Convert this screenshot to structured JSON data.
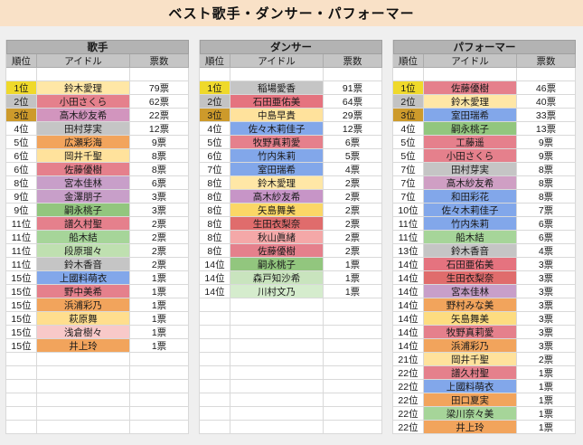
{
  "title": "ベスト歌手・ダンサー・パフォーマー",
  "column_headers": {
    "rank": "順位",
    "idol": "アイドル",
    "votes": "票数"
  },
  "medal_colors": {
    "gold": "#EFD92B",
    "silver": "#C3C3C3",
    "bronze": "#CD9A2B"
  },
  "layout": {
    "body_rows": 26
  },
  "sections": [
    {
      "name": "歌手",
      "rows": [
        {
          "rank": "1位",
          "idol": "鈴木愛理",
          "votes": "79票",
          "color": "#FFE7A6",
          "rank_color": "#EFD92B"
        },
        {
          "rank": "2位",
          "idol": "小田さくら",
          "votes": "62票",
          "color": "#E5808C",
          "rank_color": "#C3C3C3"
        },
        {
          "rank": "3位",
          "idol": "高木紗友希",
          "votes": "22票",
          "color": "#D295BE",
          "rank_color": "#CD9A2B"
        },
        {
          "rank": "4位",
          "idol": "田村芽実",
          "votes": "12票",
          "color": "#C5C5C5"
        },
        {
          "rank": "5位",
          "idol": "広瀬彩海",
          "votes": "9票",
          "color": "#F2A45C"
        },
        {
          "rank": "6位",
          "idol": "岡井千聖",
          "votes": "8票",
          "color": "#FFE29C"
        },
        {
          "rank": "6位",
          "idol": "佐藤優樹",
          "votes": "8票",
          "color": "#E5808C"
        },
        {
          "rank": "8位",
          "idol": "宮本佳林",
          "votes": "6票",
          "color": "#C89FC9"
        },
        {
          "rank": "9位",
          "idol": "金澤朋子",
          "votes": "3票",
          "color": "#C89FC9"
        },
        {
          "rank": "9位",
          "idol": "嗣永桃子",
          "votes": "3票",
          "color": "#92C67E"
        },
        {
          "rank": "11位",
          "idol": "譜久村聖",
          "votes": "2票",
          "color": "#E5808C"
        },
        {
          "rank": "11位",
          "idol": "船木結",
          "votes": "2票",
          "color": "#A6D599"
        },
        {
          "rank": "11位",
          "idol": "段原瑠々",
          "votes": "2票",
          "color": "#BFE0B0"
        },
        {
          "rank": "11位",
          "idol": "鈴木香音",
          "votes": "2票",
          "color": "#C5C5C5"
        },
        {
          "rank": "15位",
          "idol": "上國料萌衣",
          "votes": "1票",
          "color": "#82A7EA"
        },
        {
          "rank": "15位",
          "idol": "野中美希",
          "votes": "1票",
          "color": "#E5808C"
        },
        {
          "rank": "15位",
          "idol": "浜浦彩乃",
          "votes": "1票",
          "color": "#F2A45C"
        },
        {
          "rank": "15位",
          "idol": "萩原舞",
          "votes": "1票",
          "color": "#FFDE8E"
        },
        {
          "rank": "15位",
          "idol": "浅倉樹々",
          "votes": "1票",
          "color": "#F8C9C9"
        },
        {
          "rank": "15位",
          "idol": "井上玲",
          "votes": "1票",
          "color": "#F2A45C"
        }
      ]
    },
    {
      "name": "ダンサー",
      "rows": [
        {
          "rank": "1位",
          "idol": "稲場愛香",
          "votes": "91票",
          "color": "#C5C5C5",
          "rank_color": "#EFD92B"
        },
        {
          "rank": "2位",
          "idol": "石田亜佑美",
          "votes": "64票",
          "color": "#E5737F",
          "rank_color": "#C3C3C3"
        },
        {
          "rank": "3位",
          "idol": "中島早貴",
          "votes": "29票",
          "color": "#FFE29C",
          "rank_color": "#CD9A2B"
        },
        {
          "rank": "4位",
          "idol": "佐々木莉佳子",
          "votes": "12票",
          "color": "#82A7EA"
        },
        {
          "rank": "5位",
          "idol": "牧野真莉愛",
          "votes": "6票",
          "color": "#E5808C"
        },
        {
          "rank": "6位",
          "idol": "竹内朱莉",
          "votes": "5票",
          "color": "#82A7EA"
        },
        {
          "rank": "7位",
          "idol": "室田瑞希",
          "votes": "4票",
          "color": "#82A7EA"
        },
        {
          "rank": "8位",
          "idol": "鈴木愛理",
          "votes": "2票",
          "color": "#FFE7A6"
        },
        {
          "rank": "8位",
          "idol": "高木紗友希",
          "votes": "2票",
          "color": "#C795C7"
        },
        {
          "rank": "8位",
          "idol": "矢島舞美",
          "votes": "2票",
          "color": "#FBD766"
        },
        {
          "rank": "8位",
          "idol": "生田衣梨奈",
          "votes": "2票",
          "color": "#E06C6C"
        },
        {
          "rank": "8位",
          "idol": "秋山眞緒",
          "votes": "2票",
          "color": "#F4A8A8"
        },
        {
          "rank": "8位",
          "idol": "佐藤優樹",
          "votes": "2票",
          "color": "#E5808C"
        },
        {
          "rank": "14位",
          "idol": "嗣永桃子",
          "votes": "1票",
          "color": "#92C67E"
        },
        {
          "rank": "14位",
          "idol": "森戸知沙希",
          "votes": "1票",
          "color": "#C9E4BE"
        },
        {
          "rank": "14位",
          "idol": "川村文乃",
          "votes": "1票",
          "color": "#D5ECCD"
        }
      ]
    },
    {
      "name": "パフォーマー",
      "rows": [
        {
          "rank": "1位",
          "idol": "佐藤優樹",
          "votes": "46票",
          "color": "#E5808C",
          "rank_color": "#EFD92B"
        },
        {
          "rank": "2位",
          "idol": "鈴木愛理",
          "votes": "40票",
          "color": "#FFE7A6",
          "rank_color": "#C3C3C3"
        },
        {
          "rank": "3位",
          "idol": "室田瑞希",
          "votes": "33票",
          "color": "#82A7EA",
          "rank_color": "#CD9A2B"
        },
        {
          "rank": "4位",
          "idol": "嗣永桃子",
          "votes": "13票",
          "color": "#92C67E"
        },
        {
          "rank": "5位",
          "idol": "工藤遥",
          "votes": "9票",
          "color": "#E5808C"
        },
        {
          "rank": "5位",
          "idol": "小田さくら",
          "votes": "9票",
          "color": "#E5808C"
        },
        {
          "rank": "7位",
          "idol": "田村芽実",
          "votes": "8票",
          "color": "#C5C5C5"
        },
        {
          "rank": "7位",
          "idol": "高木紗友希",
          "votes": "8票",
          "color": "#CF9FC4"
        },
        {
          "rank": "7位",
          "idol": "和田彩花",
          "votes": "8票",
          "color": "#82A7EA"
        },
        {
          "rank": "10位",
          "idol": "佐々木莉佳子",
          "votes": "7票",
          "color": "#82A7EA"
        },
        {
          "rank": "11位",
          "idol": "竹内朱莉",
          "votes": "6票",
          "color": "#82A7EA"
        },
        {
          "rank": "11位",
          "idol": "船木結",
          "votes": "6票",
          "color": "#A6D599"
        },
        {
          "rank": "13位",
          "idol": "鈴木香音",
          "votes": "4票",
          "color": "#C5C5C5"
        },
        {
          "rank": "14位",
          "idol": "石田亜佑美",
          "votes": "3票",
          "color": "#E5737F"
        },
        {
          "rank": "14位",
          "idol": "生田衣梨奈",
          "votes": "3票",
          "color": "#E06C6C"
        },
        {
          "rank": "14位",
          "idol": "宮本佳林",
          "votes": "3票",
          "color": "#C89FC9"
        },
        {
          "rank": "14位",
          "idol": "野村みな美",
          "votes": "3票",
          "color": "#F2A45C"
        },
        {
          "rank": "14位",
          "idol": "矢島舞美",
          "votes": "3票",
          "color": "#FDDC80"
        },
        {
          "rank": "14位",
          "idol": "牧野真莉愛",
          "votes": "3票",
          "color": "#E5808C"
        },
        {
          "rank": "14位",
          "idol": "浜浦彩乃",
          "votes": "3票",
          "color": "#F2A45C"
        },
        {
          "rank": "21位",
          "idol": "岡井千聖",
          "votes": "2票",
          "color": "#FFE29C"
        },
        {
          "rank": "22位",
          "idol": "譜久村聖",
          "votes": "1票",
          "color": "#E5808C"
        },
        {
          "rank": "22位",
          "idol": "上國料萌衣",
          "votes": "1票",
          "color": "#82A7EA"
        },
        {
          "rank": "22位",
          "idol": "田口夏実",
          "votes": "1票",
          "color": "#F2A45C"
        },
        {
          "rank": "22位",
          "idol": "梁川奈々美",
          "votes": "1票",
          "color": "#A6D599"
        },
        {
          "rank": "22位",
          "idol": "井上玲",
          "votes": "1票",
          "color": "#F2A45C"
        }
      ]
    }
  ]
}
